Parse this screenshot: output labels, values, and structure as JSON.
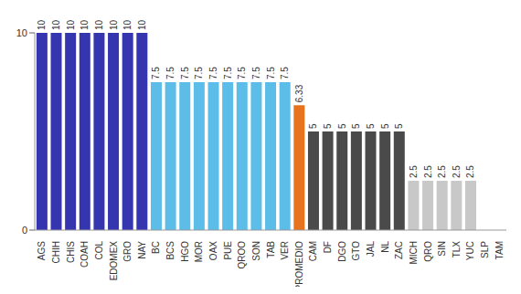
{
  "chart_data": {
    "type": "bar",
    "categories": [
      "AGS",
      "CHIH",
      "CHIS",
      "COAH",
      "COL",
      "EDOMEX",
      "GRO",
      "NAY",
      "BC",
      "BCS",
      "HGO",
      "MOR",
      "OAX",
      "PUE",
      "QROO",
      "SON",
      "TAB",
      "VER",
      "PROMEDIO",
      "CAM",
      "DF",
      "DGO",
      "GTO",
      "JAL",
      "NL",
      "ZAC",
      "MICH",
      "QRO",
      "SIN",
      "TLX",
      "YUC",
      "SLP",
      "TAM"
    ],
    "values": [
      10,
      10,
      10,
      10,
      10,
      10,
      10,
      10,
      7.5,
      7.5,
      7.5,
      7.5,
      7.5,
      7.5,
      7.5,
      7.5,
      7.5,
      7.5,
      6.33,
      5,
      5,
      5,
      5,
      5,
      5,
      5,
      2.5,
      2.5,
      2.5,
      2.5,
      2.5,
      0,
      0
    ],
    "colors": [
      "#3535b0",
      "#3535b0",
      "#3535b0",
      "#3535b0",
      "#3535b0",
      "#3535b0",
      "#3535b0",
      "#3535b0",
      "#5bbde8",
      "#5bbde8",
      "#5bbde8",
      "#5bbde8",
      "#5bbde8",
      "#5bbde8",
      "#5bbde8",
      "#5bbde8",
      "#5bbde8",
      "#5bbde8",
      "#e8731e",
      "#4a4a4a",
      "#4a4a4a",
      "#4a4a4a",
      "#4a4a4a",
      "#4a4a4a",
      "#4a4a4a",
      "#4a4a4a",
      "#c8c8c8",
      "#c8c8c8",
      "#c8c8c8",
      "#c8c8c8",
      "#c8c8c8",
      "#c8c8c8",
      "#c8c8c8"
    ],
    "ylim": [
      0,
      10
    ],
    "yticks": [
      0,
      10
    ],
    "grid": false,
    "data_labels": true
  }
}
